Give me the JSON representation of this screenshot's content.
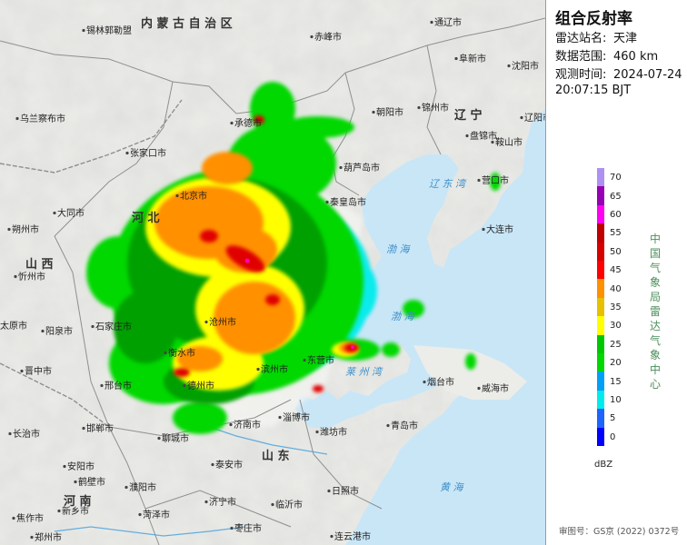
{
  "panel": {
    "title": "组合反射率",
    "station_key": "雷达站名:",
    "station": "天津",
    "range_key": "数据范围:",
    "range": "460 km",
    "time_key": "观测时间:",
    "date": "2024-07-24",
    "time": "20:07:15 BJT",
    "scale_ticks": [
      "70",
      "65",
      "60",
      "55",
      "50",
      "45",
      "40",
      "35",
      "30",
      "25",
      "20",
      "15",
      "10",
      "5",
      "0"
    ],
    "scale_colors": [
      "#ad90f0",
      "#9600b4",
      "#ff00f0",
      "#c00000",
      "#d60000",
      "#ff0000",
      "#ff9000",
      "#e7c000",
      "#ffff00",
      "#00c800",
      "#00d800",
      "#01a0f6",
      "#00ecec",
      "#1e64ff",
      "#0000ff"
    ],
    "unit": "dBZ",
    "agency": "中国气象局雷达气象中心",
    "approval": "审图号：GS京 (2022) 0372号"
  },
  "map": {
    "provinces": [
      "内 蒙 古 自 治 区",
      "河 北",
      "山 西",
      "山 东",
      "辽 宁",
      "河 南"
    ],
    "seas": [
      "辽 东 湾",
      "渤 海",
      "渤 海",
      "莱 州 湾",
      "黄 海"
    ],
    "cities": [
      "锡林郭勒盟",
      "赤峰市",
      "通辽市",
      "阜新市",
      "沈阳市",
      "乌兰察布市",
      "张家口市",
      "承德市",
      "朝阳市",
      "锦州市",
      "盘锦市",
      "鞍山市",
      "辽阳市",
      "营口市",
      "北京市",
      "秦皇岛市",
      "葫芦岛市",
      "大同市",
      "朔州市",
      "忻州市",
      "太原市",
      "阳泉市",
      "石家庄市",
      "沧州市",
      "衡水市",
      "德州市",
      "滨州市",
      "东营市",
      "晋中市",
      "邢台市",
      "邯郸市",
      "长治市",
      "聊城市",
      "济南市",
      "淄博市",
      "潍坊市",
      "烟台市",
      "威海市",
      "青岛市",
      "大连市",
      "泰安市",
      "安阳市",
      "鹤壁市",
      "濮阳市",
      "新乡市",
      "焦作市",
      "济宁市",
      "临沂市",
      "日照市",
      "菏泽市",
      "枣庄市",
      "郑州市",
      "连云港市"
    ]
  }
}
